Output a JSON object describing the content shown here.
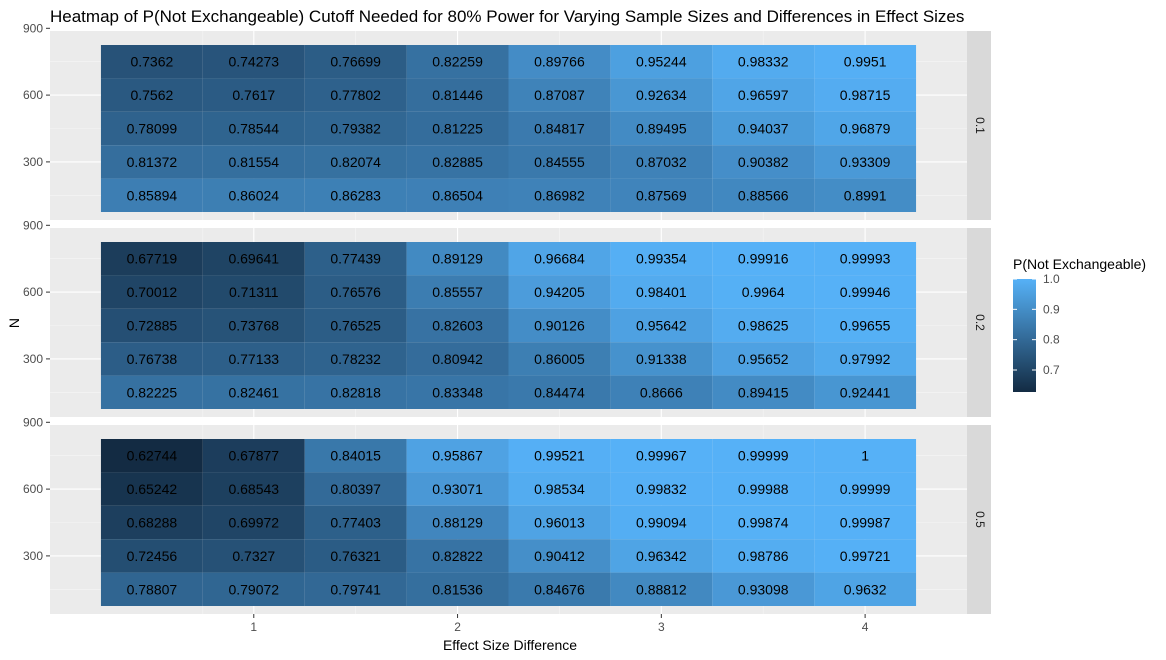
{
  "chart_data": {
    "type": "heatmap",
    "title": "Heatmap of P(Not Exchangeable) Cutoff Needed for 80% Power for Varying Sample Sizes and Differences in Effect Sizes",
    "xlabel": "Effect Size Difference",
    "ylabel": "N",
    "x_ticks": [
      "1",
      "2",
      "3",
      "4"
    ],
    "y_ticks": [
      "300",
      "600",
      "900"
    ],
    "x": [
      0.5,
      1.0,
      1.5,
      2.0,
      2.5,
      3.0,
      3.5,
      4.0
    ],
    "y": [
      150,
      300,
      450,
      600,
      750
    ],
    "xlim": [
      0.0,
      4.5
    ],
    "ylim": [
      0,
      900
    ],
    "legend": {
      "title": "P(Not Exchangeable)",
      "ticks": [
        "0.7",
        "0.8",
        "0.9",
        "1.0"
      ],
      "range": [
        0.62744,
        1.0
      ],
      "low_color": "#132B43",
      "high_color": "#56B1F7",
      "placement": "right"
    },
    "facets": [
      {
        "label": "0.1",
        "rows": [
          [
            "0.7362",
            "0.74273",
            "0.76699",
            "0.82259",
            "0.89766",
            "0.95244",
            "0.98332",
            "0.9951"
          ],
          [
            "0.7562",
            "0.7617",
            "0.77802",
            "0.81446",
            "0.87087",
            "0.92634",
            "0.96597",
            "0.98715"
          ],
          [
            "0.78099",
            "0.78544",
            "0.79382",
            "0.81225",
            "0.84817",
            "0.89495",
            "0.94037",
            "0.96879"
          ],
          [
            "0.81372",
            "0.81554",
            "0.82074",
            "0.82885",
            "0.84555",
            "0.87032",
            "0.90382",
            "0.93309"
          ],
          [
            "0.85894",
            "0.86024",
            "0.86283",
            "0.86504",
            "0.86982",
            "0.87569",
            "0.88566",
            "0.8991"
          ]
        ]
      },
      {
        "label": "0.2",
        "rows": [
          [
            "0.67719",
            "0.69641",
            "0.77439",
            "0.89129",
            "0.96684",
            "0.99354",
            "0.99916",
            "0.99993"
          ],
          [
            "0.70012",
            "0.71311",
            "0.76576",
            "0.85557",
            "0.94205",
            "0.98401",
            "0.9964",
            "0.99946"
          ],
          [
            "0.72885",
            "0.73768",
            "0.76525",
            "0.82603",
            "0.90126",
            "0.95642",
            "0.98625",
            "0.99655"
          ],
          [
            "0.76738",
            "0.77133",
            "0.78232",
            "0.80942",
            "0.86005",
            "0.91338",
            "0.95652",
            "0.97992"
          ],
          [
            "0.82225",
            "0.82461",
            "0.82818",
            "0.83348",
            "0.84474",
            "0.8666",
            "0.89415",
            "0.92441"
          ]
        ]
      },
      {
        "label": "0.5",
        "rows": [
          [
            "0.62744",
            "0.67877",
            "0.84015",
            "0.95867",
            "0.99521",
            "0.99967",
            "0.99999",
            "1"
          ],
          [
            "0.65242",
            "0.68543",
            "0.80397",
            "0.93071",
            "0.98534",
            "0.99832",
            "0.99988",
            "0.99999"
          ],
          [
            "0.68288",
            "0.69972",
            "0.77403",
            "0.88129",
            "0.96013",
            "0.99094",
            "0.99874",
            "0.99987"
          ],
          [
            "0.72456",
            "0.7327",
            "0.76321",
            "0.82822",
            "0.90412",
            "0.96342",
            "0.98786",
            "0.99721"
          ],
          [
            "0.78807",
            "0.79072",
            "0.79741",
            "0.81536",
            "0.84676",
            "0.88812",
            "0.93098",
            "0.9632"
          ]
        ]
      }
    ]
  }
}
